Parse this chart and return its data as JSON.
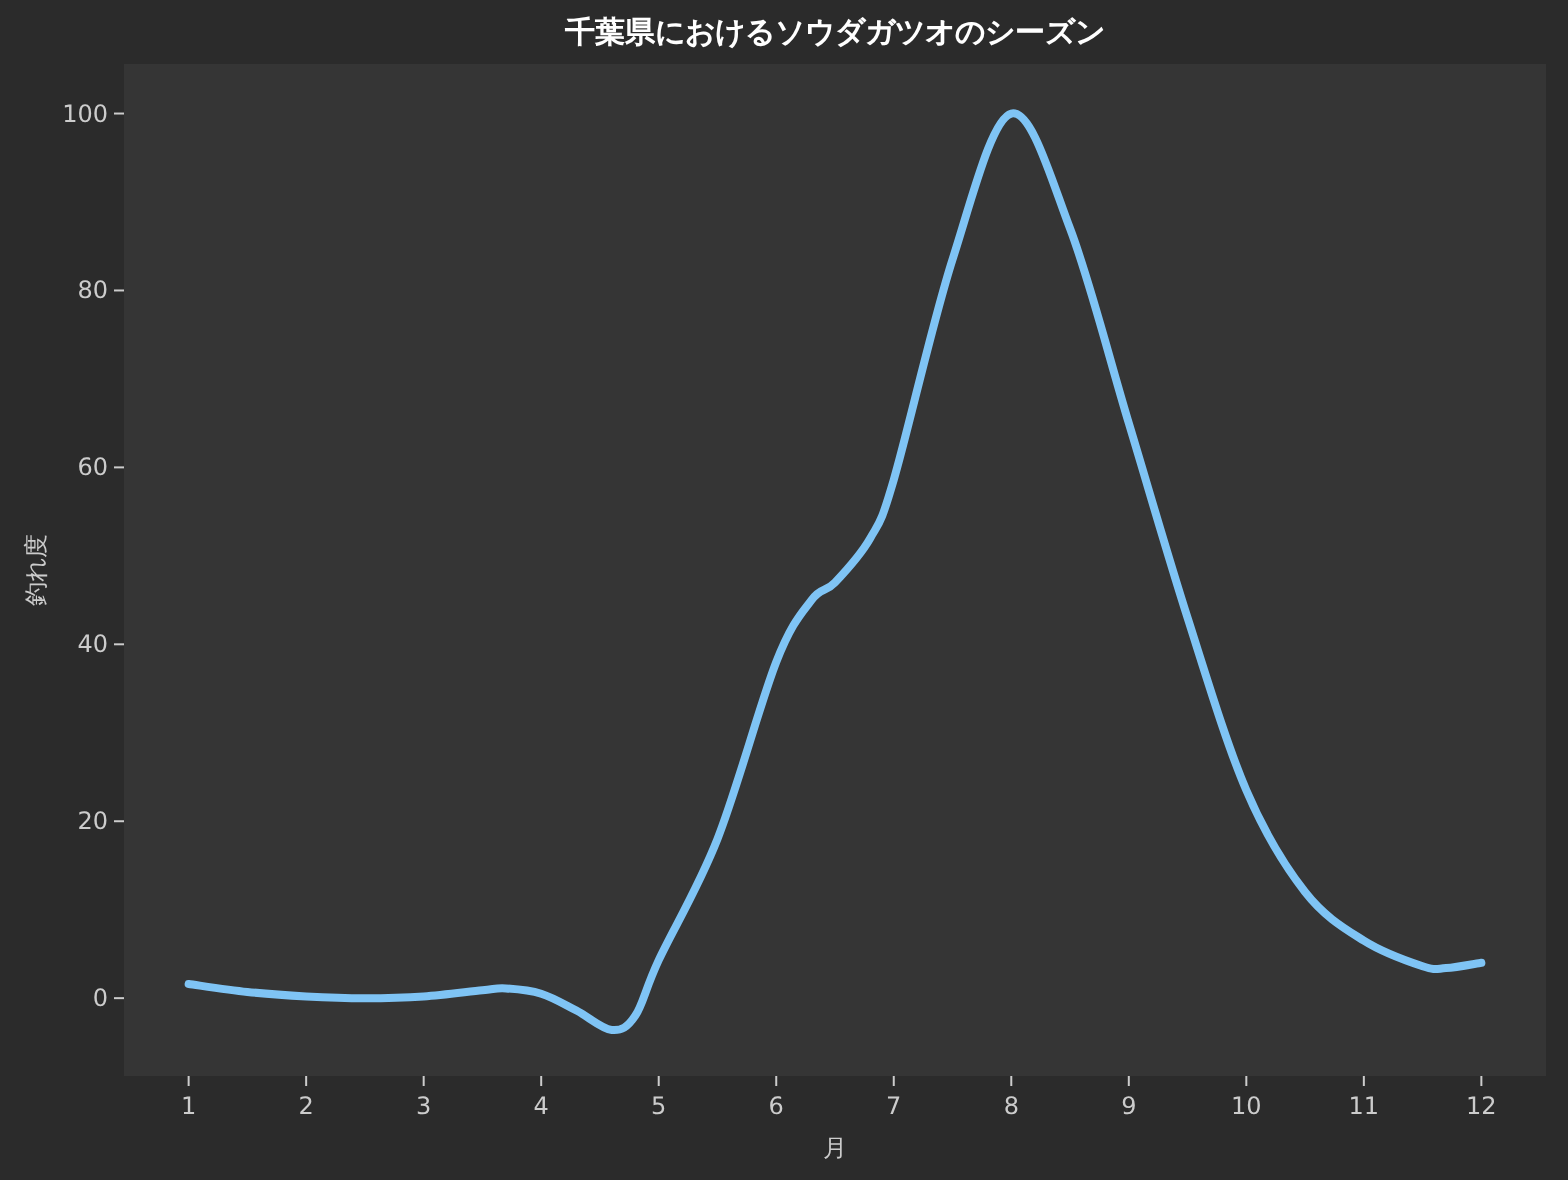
{
  "chart_data": {
    "type": "line",
    "title": "千葉県におけるソウダガツオのシーズン",
    "xlabel": "月",
    "ylabel": "釣れ度",
    "xlim": [
      0.45,
      12.55
    ],
    "ylim": [
      -8.8,
      105.6
    ],
    "xticks": [
      1,
      2,
      3,
      4,
      5,
      6,
      7,
      8,
      9,
      10,
      11,
      12
    ],
    "yticks": [
      0,
      20,
      40,
      60,
      80,
      100
    ],
    "series": [
      {
        "color": "#7fc4f5",
        "x": [
          1,
          1.5,
          2,
          2.5,
          3,
          3.5,
          3.7,
          4,
          4.3,
          4.6,
          4.8,
          5,
          5.5,
          6,
          6.3,
          6.5,
          6.8,
          7,
          7.5,
          8,
          8.5,
          9,
          9.5,
          10,
          10.5,
          11,
          11.5,
          11.7,
          12
        ],
        "values": [
          1.6,
          0.7,
          0.2,
          0,
          0.2,
          0.9,
          1.1,
          0.5,
          -1.4,
          -3.6,
          -2,
          4.3,
          18,
          38,
          45,
          47,
          52,
          58.6,
          83.5,
          100,
          87,
          65,
          43,
          23.5,
          12,
          6.5,
          3.6,
          3.4,
          4
        ]
      }
    ]
  }
}
